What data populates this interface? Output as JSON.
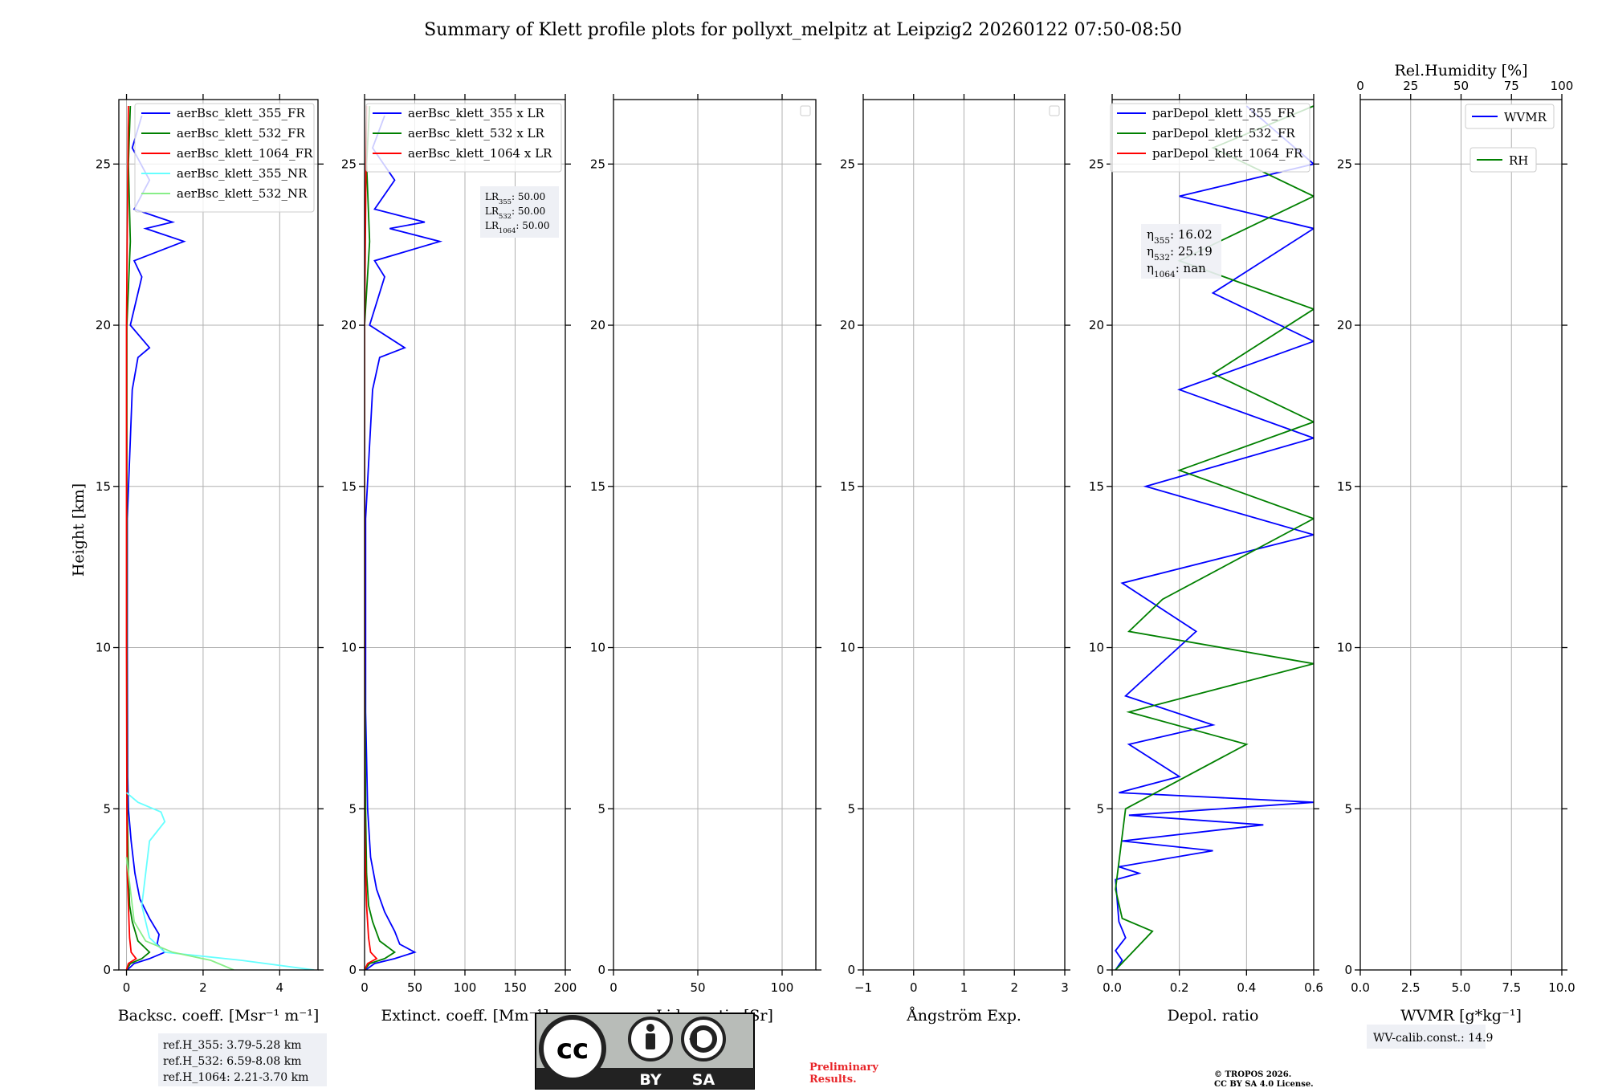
{
  "figure": {
    "title": "Summary of Klett profile plots for pollyxt_melpitz at Leipzig2 20260122 07:50-08:50",
    "ylabel": "Height [km]",
    "preliminary": [
      "Preliminary",
      "Results."
    ],
    "copyright": [
      "© TROPOS 2026.",
      "CC BY SA 4.0 License."
    ],
    "license_badge": {
      "cc": "cc",
      "by": "BY",
      "sa": "SA"
    }
  },
  "colors": {
    "ch355": "#0000ff",
    "ch532": "#008000",
    "ch1064": "#ff0000",
    "ch355nr": "#66ffff",
    "ch532nr": "#88ee88",
    "grid": "#b0b0b0"
  },
  "chart_data": [
    {
      "id": "bsc",
      "type": "line",
      "xlabel": "Backsc. coeff. [Msr⁻¹ m⁻¹]",
      "ylabel": "Height [km]",
      "xlim": [
        -0.2,
        5
      ],
      "ylim": [
        0,
        27
      ],
      "xticks": [
        0,
        2,
        4
      ],
      "yticks": [
        0,
        5,
        10,
        15,
        20,
        25
      ],
      "legend": "top-right",
      "series": [
        {
          "name": "aerBsc_klett_355_FR",
          "color": "#0000ff",
          "points": [
            [
              0.02,
              0.0
            ],
            [
              0.2,
              0.2
            ],
            [
              0.6,
              0.35
            ],
            [
              1.0,
              0.55
            ],
            [
              0.8,
              0.8
            ],
            [
              0.85,
              1.1
            ],
            [
              0.6,
              1.6
            ],
            [
              0.35,
              2.2
            ],
            [
              0.22,
              3.0
            ],
            [
              0.12,
              4.0
            ],
            [
              0.05,
              5.0
            ],
            [
              0.03,
              6.0
            ],
            [
              0.02,
              10.0
            ],
            [
              0.02,
              14.0
            ],
            [
              0.15,
              18.0
            ],
            [
              0.3,
              19.0
            ],
            [
              0.6,
              19.3
            ],
            [
              0.1,
              20.0
            ],
            [
              0.4,
              21.5
            ],
            [
              0.2,
              22.0
            ],
            [
              1.5,
              22.6
            ],
            [
              0.5,
              23.0
            ],
            [
              1.2,
              23.2
            ],
            [
              0.2,
              23.6
            ],
            [
              0.6,
              24.5
            ],
            [
              0.15,
              25.5
            ],
            [
              0.4,
              26.5
            ]
          ]
        },
        {
          "name": "aerBsc_klett_532_FR",
          "color": "#008000",
          "points": [
            [
              0.0,
              0.0
            ],
            [
              0.1,
              0.2
            ],
            [
              0.4,
              0.35
            ],
            [
              0.6,
              0.55
            ],
            [
              0.3,
              0.9
            ],
            [
              0.15,
              1.5
            ],
            [
              0.08,
              2.0
            ],
            [
              0.05,
              3.0
            ],
            [
              0.02,
              5.0
            ],
            [
              0.01,
              10.0
            ],
            [
              0.01,
              20.0
            ],
            [
              0.1,
              22.6
            ],
            [
              0.05,
              25.0
            ],
            [
              0.1,
              26.8
            ]
          ]
        },
        {
          "name": "aerBsc_klett_1064_FR",
          "color": "#ff0000",
          "points": [
            [
              0.0,
              0.0
            ],
            [
              0.05,
              0.2
            ],
            [
              0.25,
              0.35
            ],
            [
              0.12,
              0.55
            ],
            [
              0.08,
              1.0
            ],
            [
              0.05,
              2.0
            ],
            [
              0.02,
              3.0
            ],
            [
              0.01,
              5.0
            ],
            [
              0.0,
              10.0
            ],
            [
              0.0,
              20.0
            ],
            [
              0.05,
              26.8
            ]
          ]
        },
        {
          "name": "aerBsc_klett_355_NR",
          "color": "#66ffff",
          "points": [
            [
              4.9,
              0.0
            ],
            [
              3.0,
              0.3
            ],
            [
              1.0,
              0.55
            ],
            [
              0.6,
              1.0
            ],
            [
              0.4,
              2.0
            ],
            [
              0.5,
              3.0
            ],
            [
              0.6,
              4.0
            ],
            [
              1.0,
              4.6
            ],
            [
              0.9,
              4.9
            ],
            [
              0.3,
              5.2
            ],
            [
              0.0,
              5.5
            ]
          ]
        },
        {
          "name": "aerBsc_klett_532_NR",
          "color": "#88ee88",
          "points": [
            [
              2.8,
              0.0
            ],
            [
              2.2,
              0.3
            ],
            [
              1.2,
              0.55
            ],
            [
              0.5,
              0.9
            ],
            [
              0.2,
              1.5
            ],
            [
              0.1,
              2.5
            ],
            [
              0.0,
              3.5
            ]
          ]
        }
      ],
      "annotations": [
        "ref.H_355: 3.79-5.28 km",
        "ref.H_532: 6.59-8.08 km",
        "ref.H_1064: 2.21-3.70 km"
      ]
    },
    {
      "id": "ext",
      "type": "line",
      "xlabel": "Extinct. coeff. [Mm⁻¹]",
      "xlim": [
        0,
        200
      ],
      "ylim": [
        0,
        27
      ],
      "xticks": [
        0,
        50,
        100,
        150,
        200
      ],
      "yticks": [
        0,
        5,
        10,
        15,
        20,
        25
      ],
      "legend": "top-right",
      "series": [
        {
          "name": "aerBsc_klett_355 x LR",
          "color": "#0000ff",
          "points": [
            [
              1,
              0.0
            ],
            [
              10,
              0.2
            ],
            [
              30,
              0.35
            ],
            [
              50,
              0.55
            ],
            [
              35,
              0.8
            ],
            [
              30,
              1.2
            ],
            [
              20,
              1.8
            ],
            [
              12,
              2.5
            ],
            [
              6,
              3.5
            ],
            [
              3,
              5.0
            ],
            [
              1,
              8.0
            ],
            [
              1,
              14.0
            ],
            [
              8,
              18.0
            ],
            [
              15,
              19.0
            ],
            [
              40,
              19.3
            ],
            [
              5,
              20.0
            ],
            [
              20,
              21.5
            ],
            [
              10,
              22.0
            ],
            [
              75,
              22.6
            ],
            [
              25,
              23.0
            ],
            [
              60,
              23.2
            ],
            [
              10,
              23.6
            ],
            [
              30,
              24.5
            ],
            [
              8,
              25.5
            ],
            [
              20,
              26.5
            ]
          ]
        },
        {
          "name": "aerBsc_klett_532 x LR",
          "color": "#008000",
          "points": [
            [
              0,
              0.0
            ],
            [
              5,
              0.2
            ],
            [
              20,
              0.35
            ],
            [
              30,
              0.55
            ],
            [
              15,
              0.9
            ],
            [
              8,
              1.5
            ],
            [
              4,
              2.0
            ],
            [
              2,
              3.0
            ],
            [
              1,
              5.0
            ],
            [
              0,
              10.0
            ],
            [
              0,
              20.0
            ],
            [
              5,
              22.6
            ],
            [
              2,
              25.0
            ],
            [
              5,
              26.8
            ]
          ]
        },
        {
          "name": "aerBsc_klett_1064 x LR",
          "color": "#ff0000",
          "points": [
            [
              0,
              0.0
            ],
            [
              3,
              0.2
            ],
            [
              12,
              0.35
            ],
            [
              6,
              0.55
            ],
            [
              4,
              1.0
            ],
            [
              2,
              2.0
            ],
            [
              1,
              3.0
            ],
            [
              0,
              5.0
            ],
            [
              0,
              10.0
            ],
            [
              0,
              20.0
            ],
            [
              2,
              26.8
            ]
          ]
        }
      ],
      "annotations": [
        "LR355: 50.00",
        "LR532: 50.00",
        "LR1064: 50.00"
      ]
    },
    {
      "id": "lr",
      "type": "line",
      "xlabel": "Lidar ratio [Sr]",
      "xlim": [
        0,
        120
      ],
      "ylim": [
        0,
        27
      ],
      "xticks": [
        0,
        50,
        100
      ],
      "yticks": [
        0,
        5,
        10,
        15,
        20,
        25
      ],
      "legend": "top-right",
      "series": []
    },
    {
      "id": "ang",
      "type": "line",
      "xlabel": "Ångström Exp.",
      "xlim": [
        -1,
        3
      ],
      "ylim": [
        0,
        27
      ],
      "xticks": [
        -1,
        0,
        1,
        2,
        3
      ],
      "yticks": [
        0,
        5,
        10,
        15,
        20,
        25
      ],
      "legend": "top-right",
      "series": []
    },
    {
      "id": "dep",
      "type": "line",
      "xlabel": "Depol. ratio",
      "xlim": [
        0,
        0.6
      ],
      "ylim": [
        0,
        27
      ],
      "xticks": [
        0.0,
        0.2,
        0.4,
        0.6
      ],
      "yticks": [
        0,
        5,
        10,
        15,
        20,
        25
      ],
      "legend": "top-right",
      "series": [
        {
          "name": "parDepol_klett_355_FR",
          "color": "#0000ff",
          "points": [
            [
              0.01,
              0.0
            ],
            [
              0.03,
              0.3
            ],
            [
              0.01,
              0.6
            ],
            [
              0.04,
              1.0
            ],
            [
              0.02,
              1.5
            ],
            [
              0.01,
              2.8
            ],
            [
              0.08,
              3.0
            ],
            [
              0.02,
              3.2
            ],
            [
              0.3,
              3.7
            ],
            [
              0.03,
              4.0
            ],
            [
              0.45,
              4.5
            ],
            [
              0.05,
              4.8
            ],
            [
              0.6,
              5.2
            ],
            [
              0.02,
              5.5
            ],
            [
              0.2,
              6.0
            ],
            [
              0.05,
              7.0
            ],
            [
              0.3,
              7.6
            ],
            [
              0.04,
              8.5
            ],
            [
              0.25,
              10.5
            ],
            [
              0.03,
              12.0
            ],
            [
              0.6,
              13.5
            ],
            [
              0.1,
              15.0
            ],
            [
              0.6,
              16.5
            ],
            [
              0.2,
              18.0
            ],
            [
              0.6,
              19.5
            ],
            [
              0.3,
              21.0
            ],
            [
              0.6,
              23.0
            ],
            [
              0.2,
              24.0
            ],
            [
              0.6,
              25.0
            ],
            [
              0.4,
              26.8
            ]
          ]
        },
        {
          "name": "parDepol_klett_532_FR",
          "color": "#008000",
          "points": [
            [
              0.01,
              0.0
            ],
            [
              0.12,
              1.2
            ],
            [
              0.03,
              1.6
            ],
            [
              0.01,
              2.5
            ],
            [
              0.04,
              5.0
            ],
            [
              0.4,
              7.0
            ],
            [
              0.05,
              8.0
            ],
            [
              0.6,
              9.5
            ],
            [
              0.05,
              10.5
            ],
            [
              0.15,
              11.5
            ],
            [
              0.6,
              14.0
            ],
            [
              0.2,
              15.5
            ],
            [
              0.6,
              17.0
            ],
            [
              0.3,
              18.5
            ],
            [
              0.6,
              20.5
            ],
            [
              0.2,
              22.0
            ],
            [
              0.6,
              24.0
            ],
            [
              0.3,
              25.5
            ],
            [
              0.6,
              26.8
            ]
          ]
        },
        {
          "name": "parDepol_klett_1064_FR",
          "color": "#ff0000",
          "points": []
        }
      ],
      "annotations": [
        "η355: 16.02",
        "η532: 25.19",
        "η1064: nan"
      ]
    },
    {
      "id": "wv",
      "type": "line",
      "xlabel": "WVMR [g*kg⁻¹]",
      "toplabel": "Rel.Humidity [%]",
      "xlim": [
        0,
        10
      ],
      "ylim": [
        0,
        27
      ],
      "toplim": [
        0,
        100
      ],
      "xticks": [
        0.0,
        2.5,
        5.0,
        7.5,
        10.0
      ],
      "topticks": [
        0,
        25,
        50,
        75,
        100
      ],
      "yticks": [
        0,
        5,
        10,
        15,
        20,
        25
      ],
      "legend": "top-right",
      "series": [
        {
          "name": "WVMR",
          "color": "#0000ff",
          "points": []
        },
        {
          "name": "RH",
          "color": "#008000",
          "points": []
        }
      ],
      "annotations": [
        "WV-calib.const.: 14.9"
      ]
    }
  ]
}
